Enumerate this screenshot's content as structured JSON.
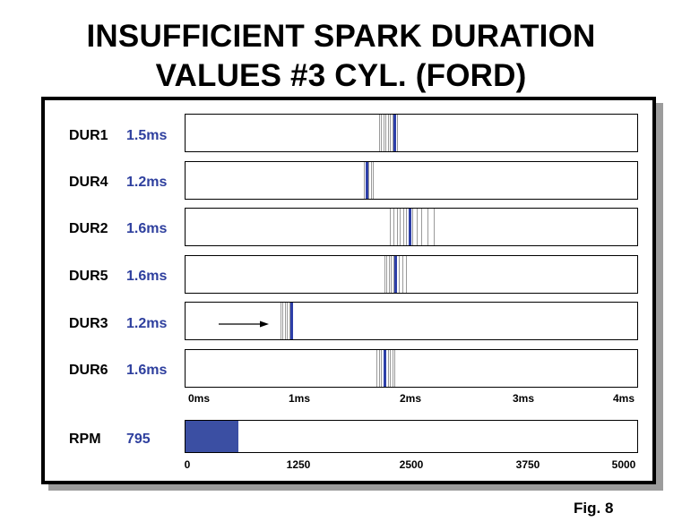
{
  "title": {
    "line1": "INSUFFICIENT SPARK DURATION",
    "line2": "VALUES #3 CYL. (FORD)"
  },
  "colors": {
    "blue": "#2e3f9e",
    "marker_blue": "#2d3fa8",
    "ghost_line": "#9a9a9a",
    "rpm_fill": "#3b4fa3"
  },
  "duration_axis": {
    "min_ms": 0,
    "max_ms": 4,
    "ticks": [
      "0ms",
      "1ms",
      "2ms",
      "3ms",
      "4ms"
    ]
  },
  "rows": [
    {
      "label": "DUR1",
      "value": "1.5ms",
      "marker_ms": 1.85,
      "trace_ms": [
        1.71,
        1.73,
        1.75,
        1.77,
        1.79,
        1.81,
        1.83,
        1.87
      ]
    },
    {
      "label": "DUR4",
      "value": "1.2ms",
      "marker_ms": 1.6,
      "trace_ms": [
        1.58,
        1.62,
        1.64,
        1.66
      ]
    },
    {
      "label": "DUR2",
      "value": "1.6ms",
      "marker_ms": 1.98,
      "trace_ms": [
        1.81,
        1.84,
        1.87,
        1.9,
        1.93,
        1.95,
        2.01,
        2.05,
        2.09,
        2.14,
        2.2
      ]
    },
    {
      "label": "DUR5",
      "value": "1.6ms",
      "marker_ms": 1.86,
      "trace_ms": [
        1.76,
        1.78,
        1.8,
        1.82,
        1.84,
        1.89,
        1.92,
        1.95
      ]
    },
    {
      "label": "DUR3",
      "value": "1.2ms",
      "marker_ms": 0.94,
      "trace_ms": [
        0.84,
        0.86,
        0.88,
        0.9,
        0.92
      ]
    },
    {
      "label": "DUR6",
      "value": "1.6ms",
      "marker_ms": 1.76,
      "trace_ms": [
        1.69,
        1.71,
        1.73,
        1.79,
        1.81,
        1.83,
        1.85
      ]
    }
  ],
  "rpm": {
    "label": "RPM",
    "value": "795",
    "reading": 590,
    "min": 0,
    "max": 5000,
    "ticks": [
      "0",
      "1250",
      "2500",
      "3750",
      "5000"
    ]
  },
  "figure_label": "Fig. 8"
}
